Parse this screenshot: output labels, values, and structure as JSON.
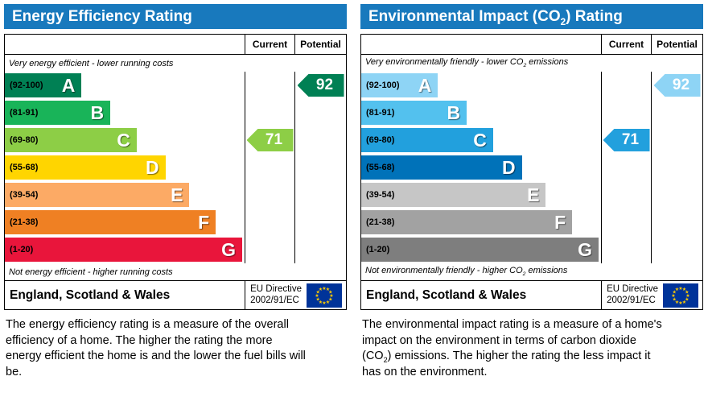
{
  "colors": {
    "header_blue": "#1879bd",
    "epc_band_colors": [
      "#008054",
      "#19b459",
      "#8dce46",
      "#ffd500",
      "#fcaa65",
      "#ef8023",
      "#e9153b"
    ],
    "co2_band_colors": [
      "#8ed4f5",
      "#53c1ee",
      "#22a0dd",
      "#0072b9",
      "#c6c6c6",
      "#a2a2a2",
      "#7e7e7e"
    ]
  },
  "panels": [
    {
      "title": "Energy Efficiency Rating",
      "columns": {
        "current": "Current",
        "potential": "Potential"
      },
      "top_note": "Very energy efficient - lower running costs",
      "bottom_note": "Not energy efficient - higher running costs",
      "bands": [
        {
          "letter": "A",
          "range": "(92-100)",
          "color": "#008054",
          "width_pct": 32
        },
        {
          "letter": "B",
          "range": "(81-91)",
          "color": "#19b459",
          "width_pct": 44
        },
        {
          "letter": "C",
          "range": "(69-80)",
          "color": "#8dce46",
          "width_pct": 55
        },
        {
          "letter": "D",
          "range": "(55-68)",
          "color": "#ffd500",
          "width_pct": 67
        },
        {
          "letter": "E",
          "range": "(39-54)",
          "color": "#fcaa65",
          "width_pct": 77
        },
        {
          "letter": "F",
          "range": "(21-38)",
          "color": "#ef8023",
          "width_pct": 88
        },
        {
          "letter": "G",
          "range": "(1-20)",
          "color": "#e9153b",
          "width_pct": 99
        }
      ],
      "current": {
        "value": "71",
        "band": "C",
        "color": "#8dce46"
      },
      "potential": {
        "value": "92",
        "band": "A",
        "color": "#008054"
      },
      "footer": {
        "region": "England, Scotland & Wales",
        "directive_line1": "EU Directive",
        "directive_line2": "2002/91/EC"
      },
      "description": "The energy efficiency rating is a measure of the overall efficiency of a home. The higher the rating the more energy efficient the home is and the lower the fuel bills will be."
    },
    {
      "title_parts": [
        "Environmental Impact (CO",
        "2",
        ") Rating"
      ],
      "columns": {
        "current": "Current",
        "potential": "Potential"
      },
      "top_note_parts": [
        "Very environmentally friendly - lower CO",
        "2",
        " emissions"
      ],
      "bottom_note_parts": [
        "Not environmentally friendly - higher CO",
        "2",
        " emissions"
      ],
      "bands": [
        {
          "letter": "A",
          "range": "(92-100)",
          "color": "#8ed4f5",
          "width_pct": 32
        },
        {
          "letter": "B",
          "range": "(81-91)",
          "color": "#53c1ee",
          "width_pct": 44
        },
        {
          "letter": "C",
          "range": "(69-80)",
          "color": "#22a0dd",
          "width_pct": 55
        },
        {
          "letter": "D",
          "range": "(55-68)",
          "color": "#0072b9",
          "width_pct": 67
        },
        {
          "letter": "E",
          "range": "(39-54)",
          "color": "#c6c6c6",
          "width_pct": 77
        },
        {
          "letter": "F",
          "range": "(21-38)",
          "color": "#a2a2a2",
          "width_pct": 88
        },
        {
          "letter": "G",
          "range": "(1-20)",
          "color": "#7e7e7e",
          "width_pct": 99
        }
      ],
      "current": {
        "value": "71",
        "band": "C",
        "color": "#22a0dd"
      },
      "potential": {
        "value": "92",
        "band": "A",
        "color": "#8ed4f5"
      },
      "footer": {
        "region": "England, Scotland & Wales",
        "directive_line1": "EU Directive",
        "directive_line2": "2002/91/EC"
      },
      "description_parts": [
        "The environmental impact rating is a measure of a home's impact on the environment in terms of carbon dioxide (CO",
        "2",
        ") emissions. The higher the rating the less impact it has on the environment."
      ]
    }
  ],
  "chart_data": [
    {
      "type": "bar",
      "title": "Energy Efficiency Rating",
      "categories": [
        "A",
        "B",
        "C",
        "D",
        "E",
        "F",
        "G"
      ],
      "band_ranges": [
        "92-100",
        "81-91",
        "69-80",
        "55-68",
        "39-54",
        "21-38",
        "1-20"
      ],
      "series": [
        {
          "name": "Current",
          "values": [
            71
          ]
        },
        {
          "name": "Potential",
          "values": [
            92
          ]
        }
      ],
      "current": 71,
      "current_band": "C",
      "potential": 92,
      "potential_band": "A",
      "scale": [
        1,
        100
      ]
    },
    {
      "type": "bar",
      "title": "Environmental Impact (CO2) Rating",
      "categories": [
        "A",
        "B",
        "C",
        "D",
        "E",
        "F",
        "G"
      ],
      "band_ranges": [
        "92-100",
        "81-91",
        "69-80",
        "55-68",
        "39-54",
        "21-38",
        "1-20"
      ],
      "series": [
        {
          "name": "Current",
          "values": [
            71
          ]
        },
        {
          "name": "Potential",
          "values": [
            92
          ]
        }
      ],
      "current": 71,
      "current_band": "C",
      "potential": 92,
      "potential_band": "A",
      "scale": [
        1,
        100
      ]
    }
  ]
}
